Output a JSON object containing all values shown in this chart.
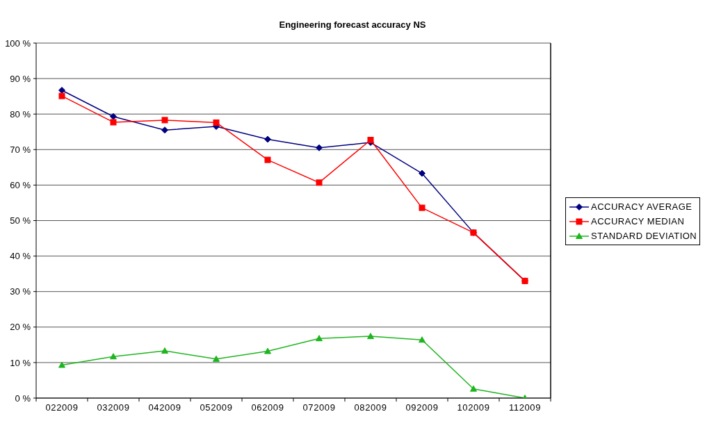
{
  "chart_data": {
    "type": "line",
    "title": "Engineering forecast accuracy NS",
    "categories": [
      "022009",
      "032009",
      "042009",
      "052009",
      "062009",
      "072009",
      "082009",
      "092009",
      "102009",
      "112009"
    ],
    "series": [
      {
        "name": "ACCURACY AVERAGE",
        "color": "#000080",
        "marker": "diamond",
        "values": [
          86.7,
          79.3,
          75.5,
          76.5,
          72.9,
          70.5,
          72.0,
          63.3,
          46.6,
          33.0
        ]
      },
      {
        "name": "ACCURACY MEDIAN",
        "color": "#ff0000",
        "marker": "square",
        "values": [
          85.1,
          77.7,
          78.3,
          77.6,
          67.1,
          60.7,
          72.7,
          53.6,
          46.6,
          33.0
        ]
      },
      {
        "name": "STANDARD DEVIATION",
        "color": "#1fb51f",
        "marker": "triangle",
        "values": [
          9.3,
          11.7,
          13.3,
          11.0,
          13.2,
          16.8,
          17.4,
          16.4,
          2.6,
          0
        ]
      }
    ],
    "ylim": [
      0,
      100
    ],
    "yticks": [
      {
        "value": 0,
        "label": "0 %"
      },
      {
        "value": 10,
        "label": "10 %"
      },
      {
        "value": 20,
        "label": "20 %"
      },
      {
        "value": 30,
        "label": "30 %"
      },
      {
        "value": 40,
        "label": "40 %"
      },
      {
        "value": 50,
        "label": "50 %"
      },
      {
        "value": 60,
        "label": "60 %"
      },
      {
        "value": 70,
        "label": "70 %"
      },
      {
        "value": 80,
        "label": "80 %"
      },
      {
        "value": 90,
        "label": "90 %"
      },
      {
        "value": 100,
        "label": "100 %"
      }
    ],
    "grid": "y",
    "legend": "right"
  }
}
